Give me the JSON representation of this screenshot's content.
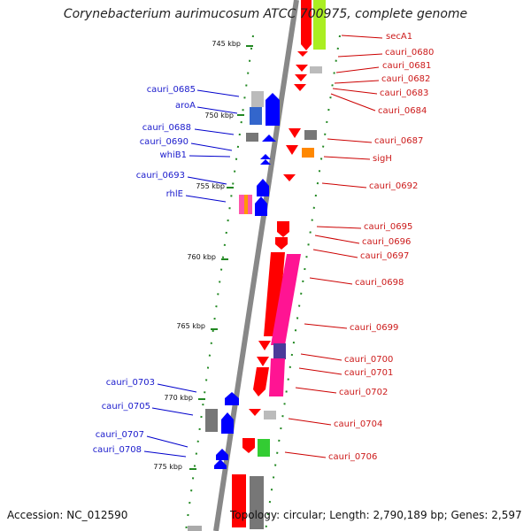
{
  "title": "Corynebacterium aurimucosum ATCC 700975, complete genome",
  "ticks": [
    "745 kbp",
    "750 kbp",
    "755 kbp",
    "760 kbp",
    "765 kbp",
    "770 kbp",
    "775 kbp"
  ],
  "left_labels": [
    "cauri_0685",
    "aroA",
    "cauri_0688",
    "cauri_0690",
    "whiB1",
    "cauri_0693",
    "rhlE",
    "cauri_0703",
    "cauri_0705",
    "cauri_0707",
    "cauri_0708"
  ],
  "right_labels": [
    "secA1",
    "cauri_0680",
    "cauri_0681",
    "cauri_0682",
    "cauri_0683",
    "cauri_0684",
    "cauri_0687",
    "sigH",
    "cauri_0692",
    "cauri_0695",
    "cauri_0696",
    "cauri_0697",
    "cauri_0698",
    "cauri_0699",
    "cauri_0700",
    "cauri_0701",
    "cauri_0702",
    "cauri_0704",
    "cauri_0706"
  ],
  "footer": {
    "accession": "Accession: NC_012590",
    "topology": "Topology: circular; Length: 2,790,189 bp; Genes: 2,597"
  },
  "colors": {
    "forward": "#ff0000",
    "reverse": "#0000ff",
    "backbone": "#888888",
    "gc": "#228822",
    "callout_left": "#0000cc",
    "callout_right": "#cc0000"
  }
}
